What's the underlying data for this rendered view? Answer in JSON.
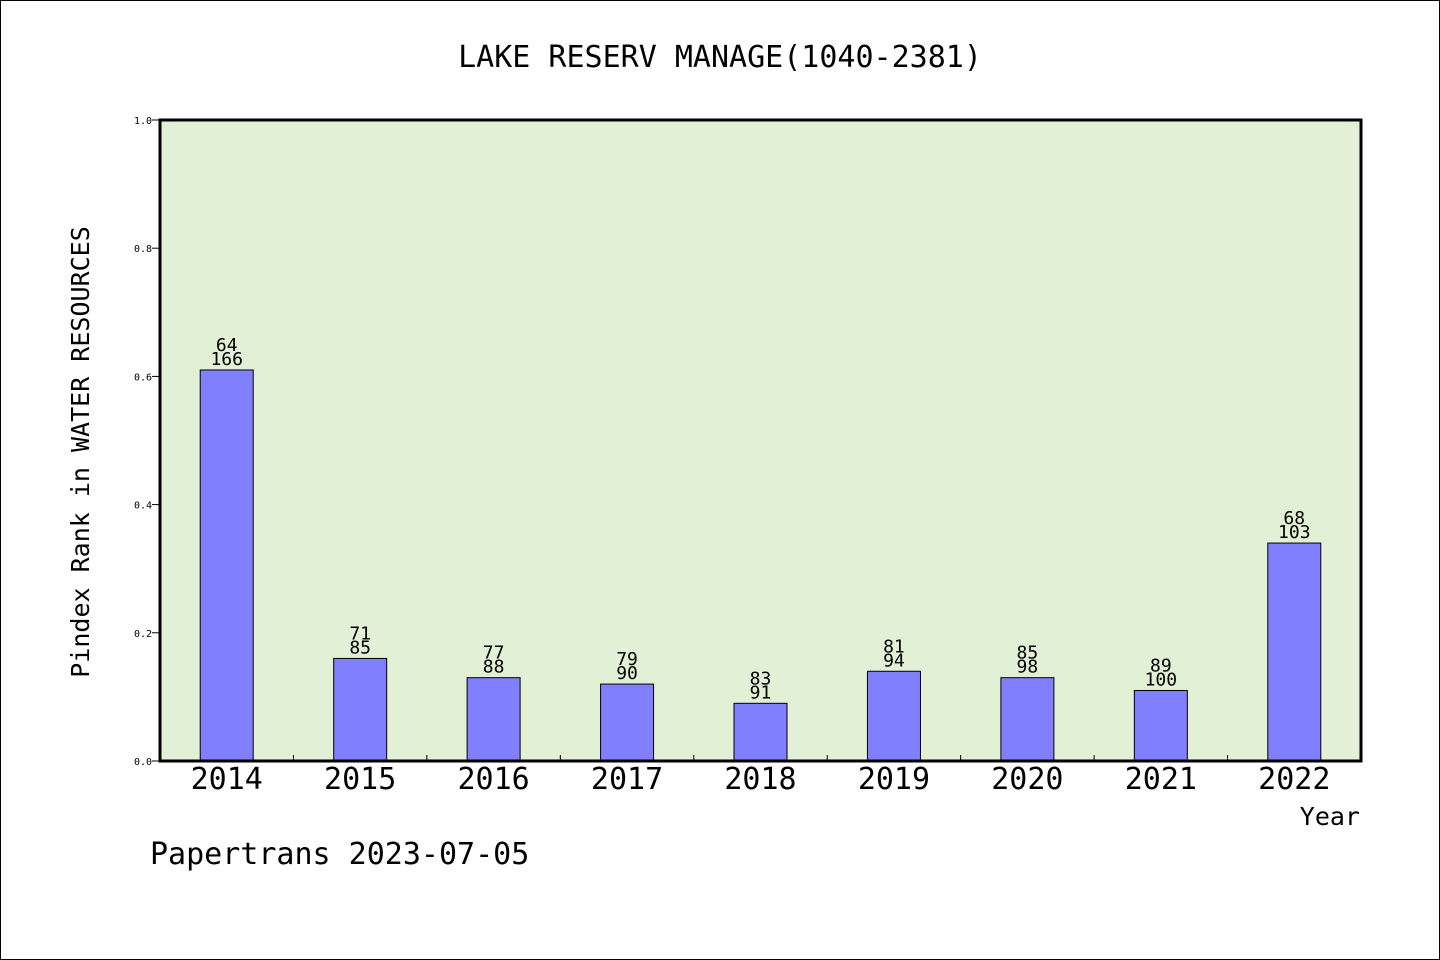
{
  "chart_data": {
    "type": "bar",
    "title": "LAKE RESERV MANAGE(1040-2381)",
    "ylabel": "Pindex Rank in WATER RESOURCES",
    "xlabel": "Year",
    "categories": [
      "2014",
      "2015",
      "2016",
      "2017",
      "2018",
      "2019",
      "2020",
      "2021",
      "2022"
    ],
    "values": [
      0.61,
      0.16,
      0.13,
      0.12,
      0.09,
      0.14,
      0.13,
      0.11,
      0.34
    ],
    "label_top": [
      "64",
      "71",
      "77",
      "79",
      "83",
      "81",
      "85",
      "89",
      "68"
    ],
    "label_bottom": [
      "166",
      "85",
      "88",
      "90",
      "91",
      "94",
      "98",
      "100",
      "103"
    ],
    "ylim": [
      0,
      1.0
    ],
    "yticks": [
      "0.0",
      "0.2",
      "0.4",
      "0.6",
      "0.8",
      "1.0"
    ],
    "grid": false,
    "colors": {
      "plot_background": "#e2f0d6",
      "bar_fill": "#8080ff",
      "bar_edge": "#000000"
    }
  },
  "footer": "Papertrans 2023-07-05"
}
